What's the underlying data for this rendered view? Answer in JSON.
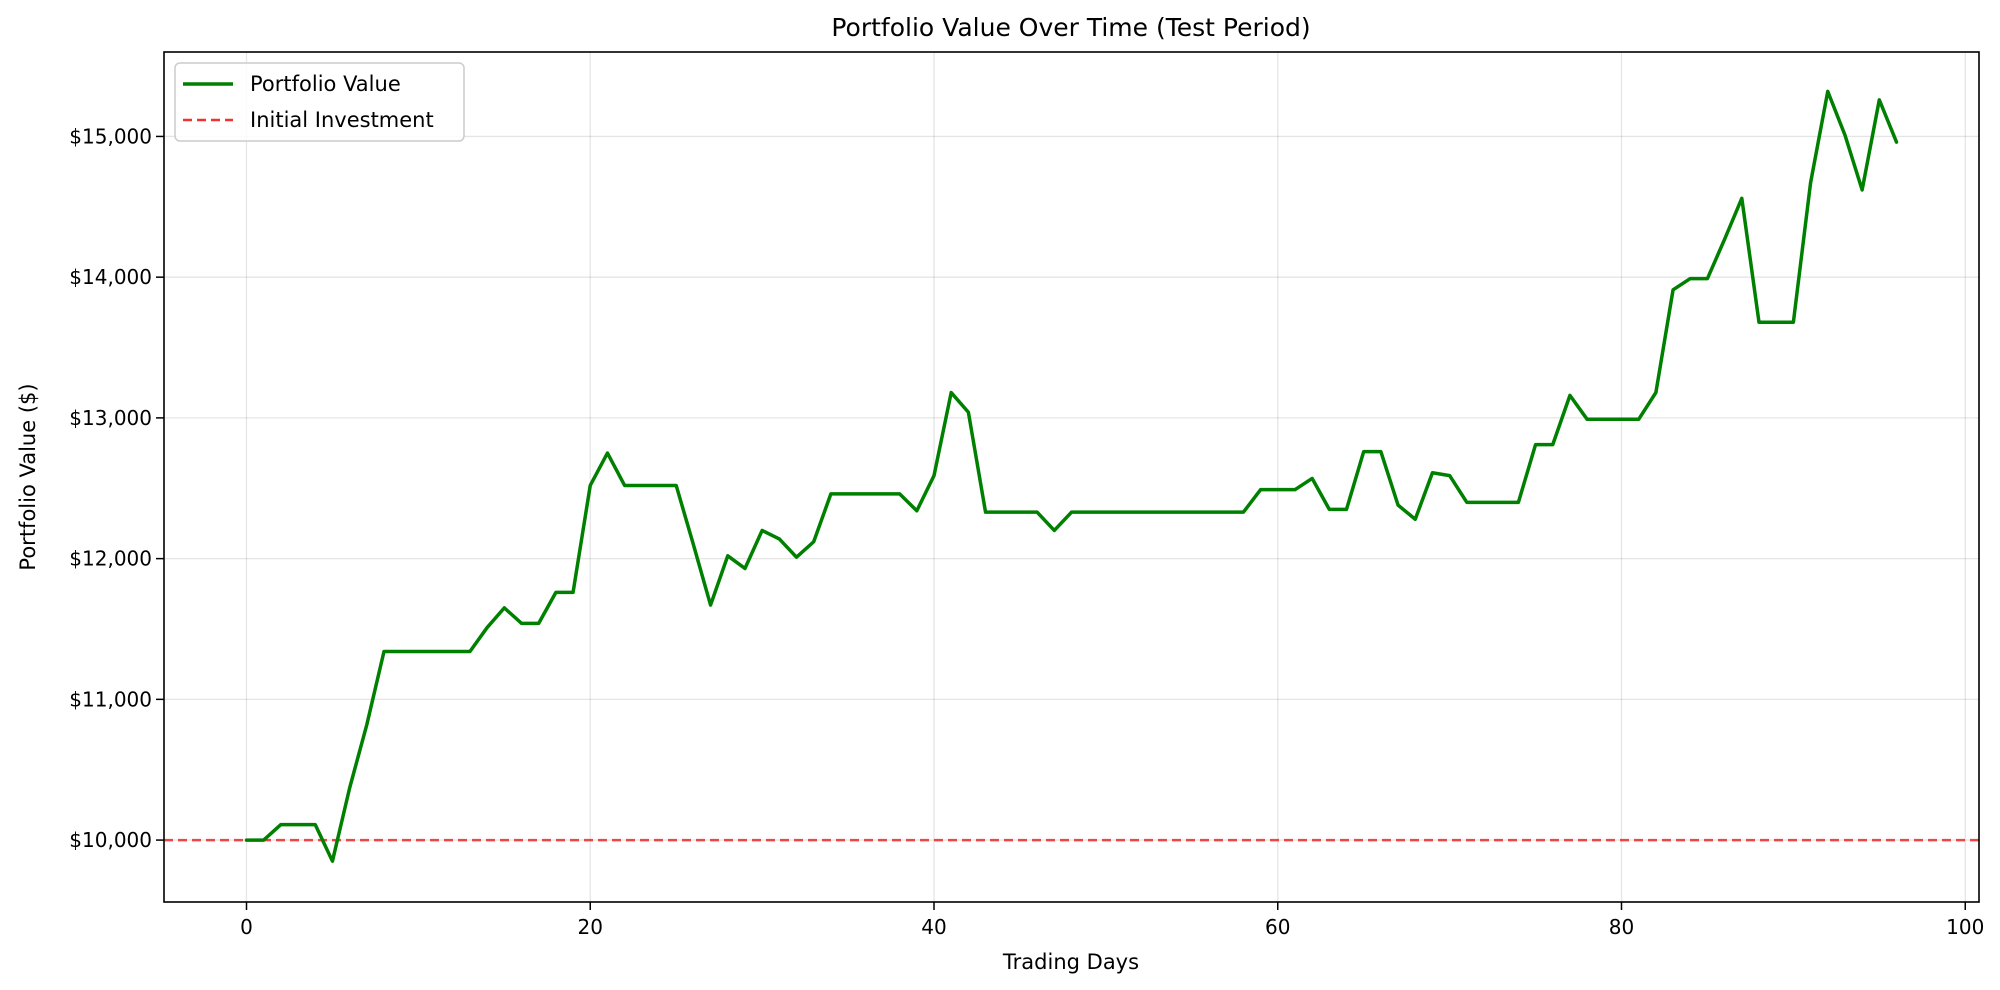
{
  "chart_data": {
    "type": "line",
    "title": "Portfolio Value Over Time (Test Period)",
    "xlabel": "Trading Days",
    "ylabel": "Portfolio Value ($)",
    "xlim": [
      -4.8,
      100.8
    ],
    "ylim": [
      9560,
      15600
    ],
    "grid": true,
    "legend_position": "top-left",
    "x_ticks": [
      0,
      20,
      40,
      60,
      80,
      100
    ],
    "x_tick_labels": [
      "0",
      "20",
      "40",
      "60",
      "80",
      "100"
    ],
    "y_ticks": [
      10000,
      11000,
      12000,
      13000,
      14000,
      15000
    ],
    "y_tick_labels": [
      "$10,000",
      "$11,000",
      "$12,000",
      "$13,000",
      "$14,000",
      "$15,000"
    ],
    "series": [
      {
        "name": "Portfolio Value",
        "color": "#008000",
        "style": "solid",
        "x": [
          0,
          1,
          2,
          3,
          4,
          5,
          6,
          7,
          8,
          9,
          10,
          11,
          12,
          13,
          14,
          15,
          16,
          17,
          18,
          19,
          20,
          21,
          22,
          23,
          24,
          25,
          26,
          27,
          28,
          29,
          30,
          31,
          32,
          33,
          34,
          35,
          36,
          37,
          38,
          39,
          40,
          41,
          42,
          43,
          44,
          45,
          46,
          47,
          48,
          49,
          50,
          51,
          52,
          53,
          54,
          55,
          56,
          57,
          58,
          59,
          60,
          61,
          62,
          63,
          64,
          65,
          66,
          67,
          68,
          69,
          70,
          71,
          72,
          73,
          74,
          75,
          76,
          77,
          78,
          79,
          80,
          81,
          82,
          83,
          84,
          85,
          86,
          87,
          88,
          89,
          90,
          91,
          92,
          93,
          94,
          95,
          96
        ],
        "values": [
          10000,
          10000,
          10110,
          10110,
          10110,
          9850,
          10370,
          10820,
          11340,
          11340,
          11340,
          11340,
          11340,
          11340,
          11510,
          11650,
          11540,
          11540,
          11760,
          11760,
          12520,
          12750,
          12520,
          12520,
          12520,
          12520,
          12100,
          11670,
          12020,
          11930,
          12200,
          12140,
          12010,
          12120,
          12460,
          12460,
          12460,
          12460,
          12460,
          12340,
          12590,
          13180,
          13040,
          12330,
          12330,
          12330,
          12330,
          12200,
          12330,
          12330,
          12330,
          12330,
          12330,
          12330,
          12330,
          12330,
          12330,
          12330,
          12330,
          12490,
          12490,
          12490,
          12570,
          12350,
          12350,
          12760,
          12760,
          12380,
          12280,
          12610,
          12590,
          12400,
          12400,
          12400,
          12400,
          12810,
          12810,
          13160,
          12990,
          12990,
          12990,
          12990,
          13180,
          13910,
          13990,
          13990,
          14270,
          14560,
          13680,
          13680,
          13680,
          14670,
          15320,
          15010,
          14620,
          15260,
          14960
        ]
      },
      {
        "name": "Initial Investment",
        "color": "#ee3333",
        "style": "dashed",
        "y": 10000
      }
    ]
  }
}
